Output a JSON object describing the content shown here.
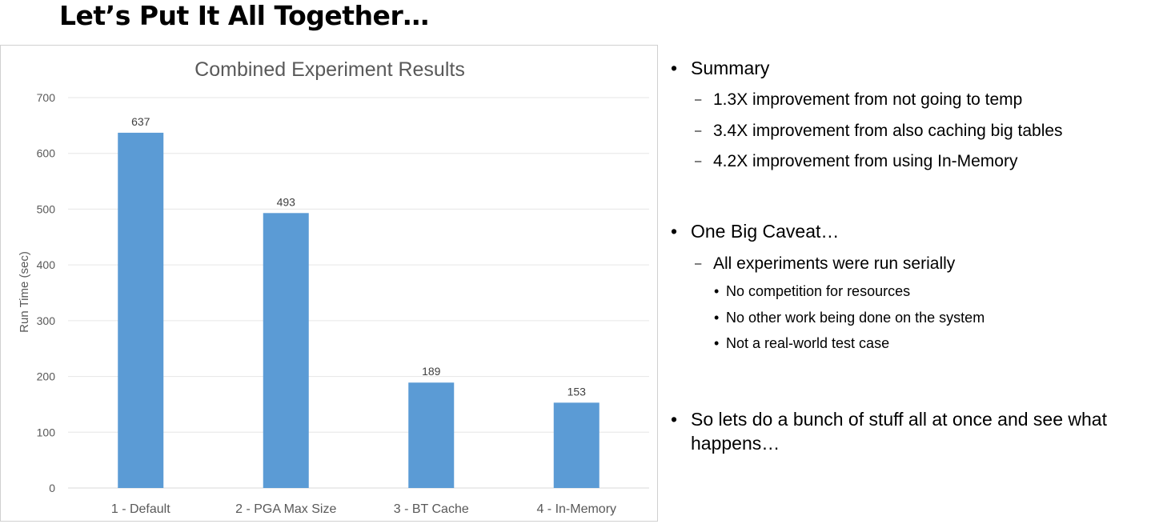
{
  "slide": {
    "title": "Let’s Put It All Together…"
  },
  "chart_data": {
    "type": "bar",
    "title": "Combined Experiment Results",
    "xlabel": "",
    "ylabel": "Run Time (sec)",
    "ylim": [
      0,
      700
    ],
    "yticks": [
      0,
      100,
      200,
      300,
      400,
      500,
      600,
      700
    ],
    "grid": true,
    "legend": "none",
    "categories": [
      "1 - Default",
      "2 - PGA Max Size",
      "3 - BT Cache",
      "4 - In-Memory"
    ],
    "values": [
      637,
      493,
      189,
      153
    ],
    "data_labels": [
      "637",
      "493",
      "189",
      "153"
    ],
    "bar_color": "#5b9bd5"
  },
  "bullets": {
    "summary": {
      "label": "Summary",
      "items": [
        "1.3X improvement from not going to temp",
        "3.4X improvement from also caching big tables",
        "4.2X improvement from using In-Memory"
      ]
    },
    "caveat": {
      "label": "One Big Caveat…",
      "sub": "All experiments were run serially",
      "items": [
        "No competition for resources",
        "No other work being done on the system",
        "Not a real-world test case"
      ]
    },
    "conclusion": {
      "label": "So lets do a bunch of stuff all at once and see what happens…"
    },
    "bullet_glyph": "•",
    "dash_glyph": "–"
  }
}
